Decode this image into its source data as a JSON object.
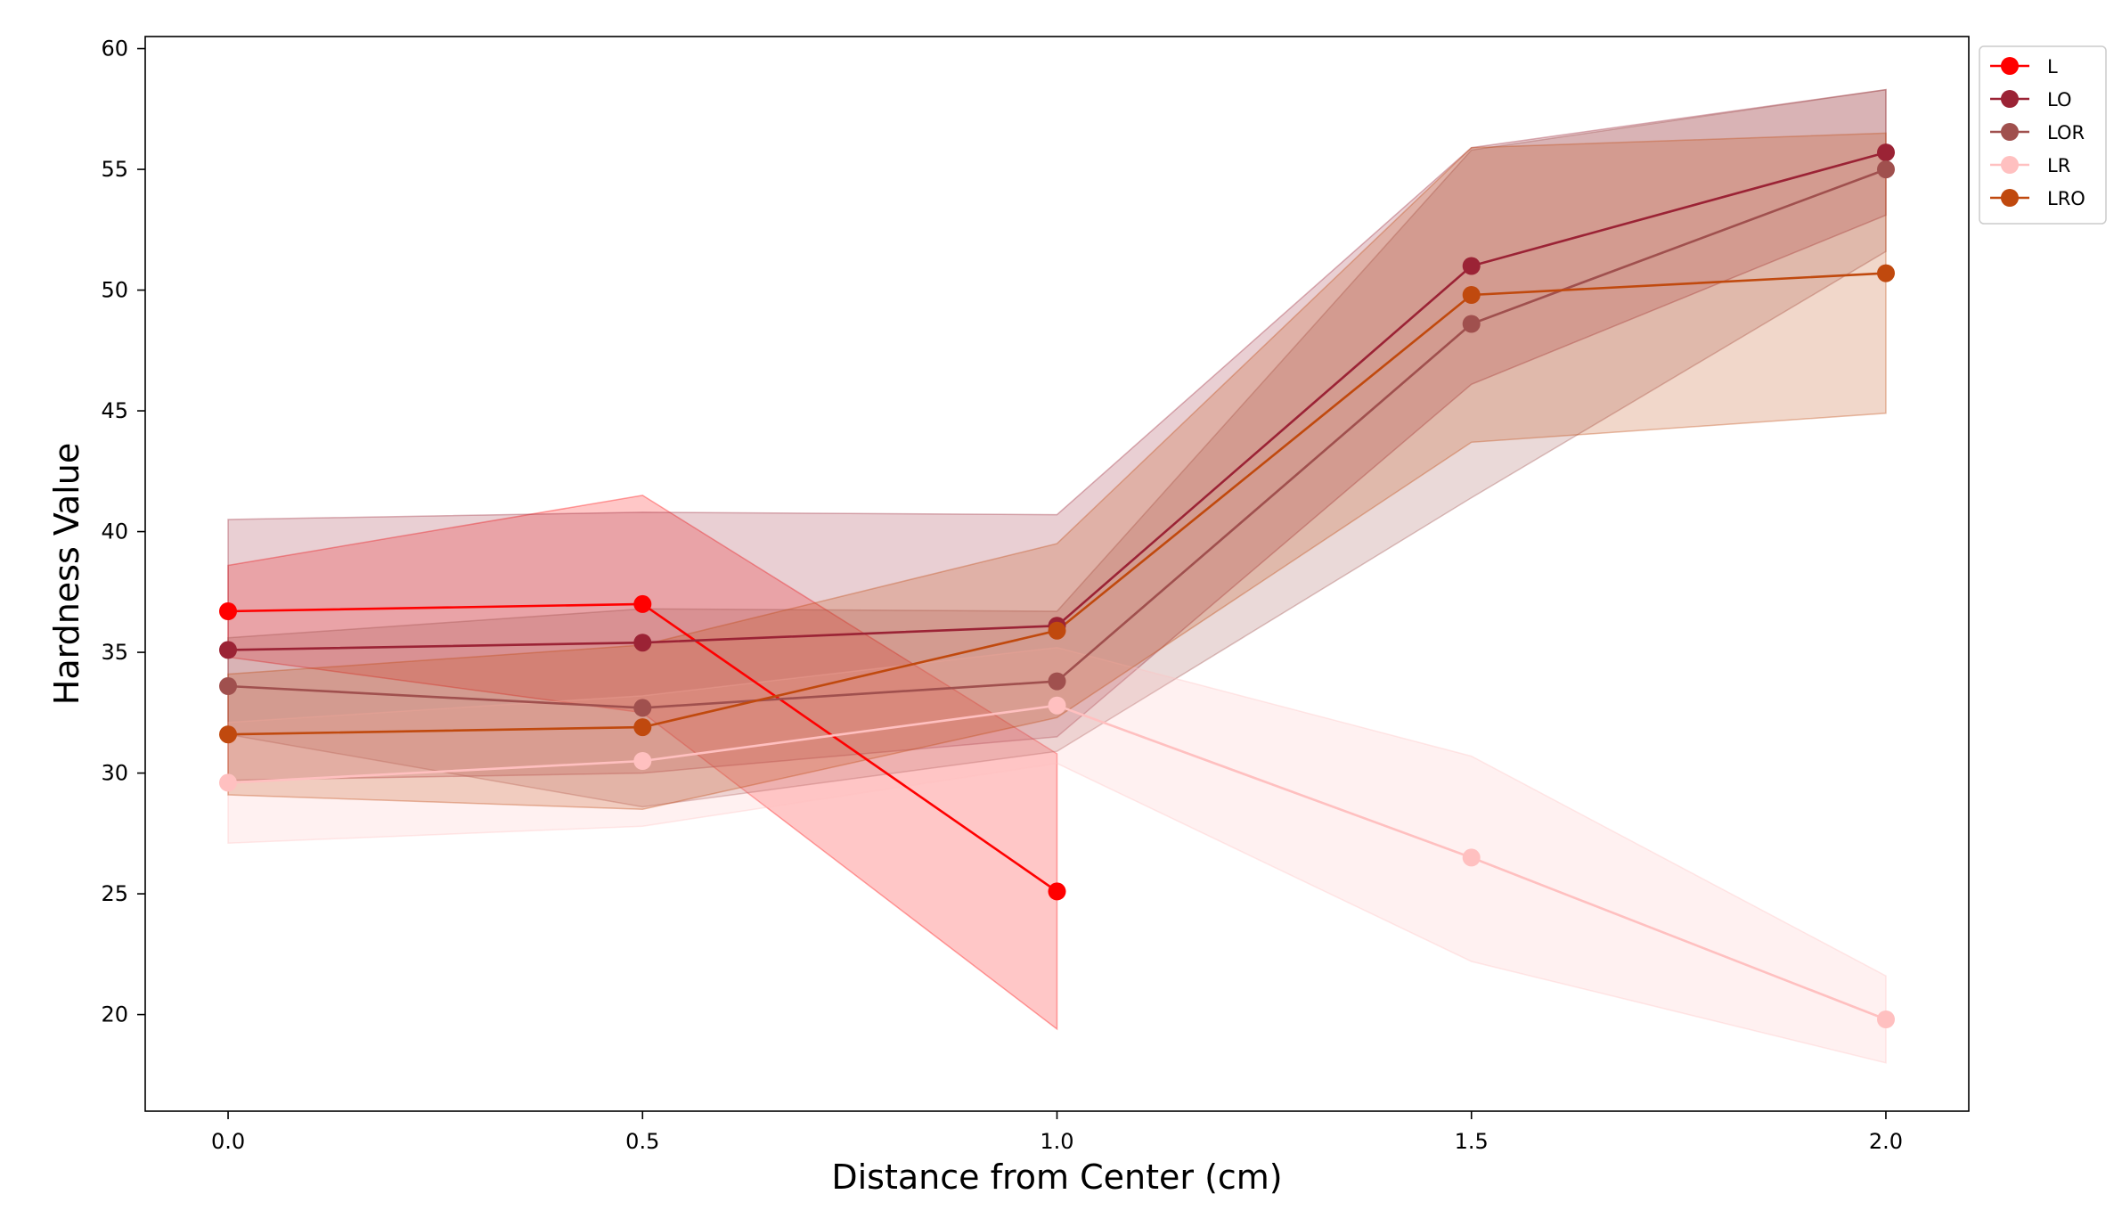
{
  "chart_data": {
    "type": "line",
    "title": "",
    "xlabel": "Distance from Center (cm)",
    "ylabel": "Hardness Value",
    "xlim": [
      -0.1,
      2.1
    ],
    "ylim": [
      16,
      60.5
    ],
    "xticks": [
      0.0,
      0.5,
      1.0,
      1.5,
      2.0
    ],
    "xtick_labels": [
      "0.0",
      "0.5",
      "1.0",
      "1.5",
      "2.0"
    ],
    "yticks": [
      20,
      25,
      30,
      35,
      40,
      45,
      50,
      55,
      60
    ],
    "ytick_labels": [
      "20",
      "25",
      "30",
      "35",
      "40",
      "45",
      "50",
      "55",
      "60"
    ],
    "grid": false,
    "legend_position": "top-right",
    "series": [
      {
        "name": "L",
        "color": "#ff0000",
        "x": [
          0.0,
          0.5,
          1.0
        ],
        "y": [
          36.7,
          37.0,
          25.1
        ],
        "lower": [
          34.8,
          32.5,
          19.4
        ],
        "upper": [
          38.6,
          41.5,
          30.8
        ]
      },
      {
        "name": "LO",
        "color": "#9b2335",
        "x": [
          0.0,
          0.5,
          1.0,
          1.5,
          2.0
        ],
        "y": [
          35.1,
          35.4,
          36.1,
          51.0,
          55.7
        ],
        "lower": [
          29.7,
          30.0,
          31.5,
          46.1,
          53.1
        ],
        "upper": [
          40.5,
          40.8,
          40.7,
          55.9,
          58.3
        ]
      },
      {
        "name": "LOR",
        "color": "#a0504e",
        "x": [
          0.0,
          0.5,
          1.0,
          1.5,
          2.0
        ],
        "y": [
          33.6,
          32.7,
          33.8,
          48.6,
          55.0
        ],
        "lower": [
          31.6,
          28.6,
          30.9,
          41.4,
          51.6
        ],
        "upper": [
          35.6,
          36.8,
          36.7,
          55.8,
          58.3
        ]
      },
      {
        "name": "LR",
        "color": "#ffc0c0",
        "x": [
          0.0,
          0.5,
          1.0,
          1.5,
          2.0
        ],
        "y": [
          29.6,
          30.5,
          32.8,
          26.5,
          19.8
        ],
        "lower": [
          27.1,
          27.8,
          30.4,
          22.2,
          18.0
        ],
        "upper": [
          32.1,
          33.2,
          35.2,
          30.7,
          21.6
        ]
      },
      {
        "name": "LRO",
        "color": "#c0490e",
        "x": [
          0.0,
          0.5,
          1.0,
          1.5,
          2.0
        ],
        "y": [
          31.6,
          31.9,
          35.9,
          49.8,
          50.7
        ],
        "lower": [
          29.1,
          28.5,
          32.3,
          43.7,
          44.9
        ],
        "upper": [
          34.1,
          35.3,
          39.5,
          55.9,
          56.5
        ]
      }
    ]
  }
}
